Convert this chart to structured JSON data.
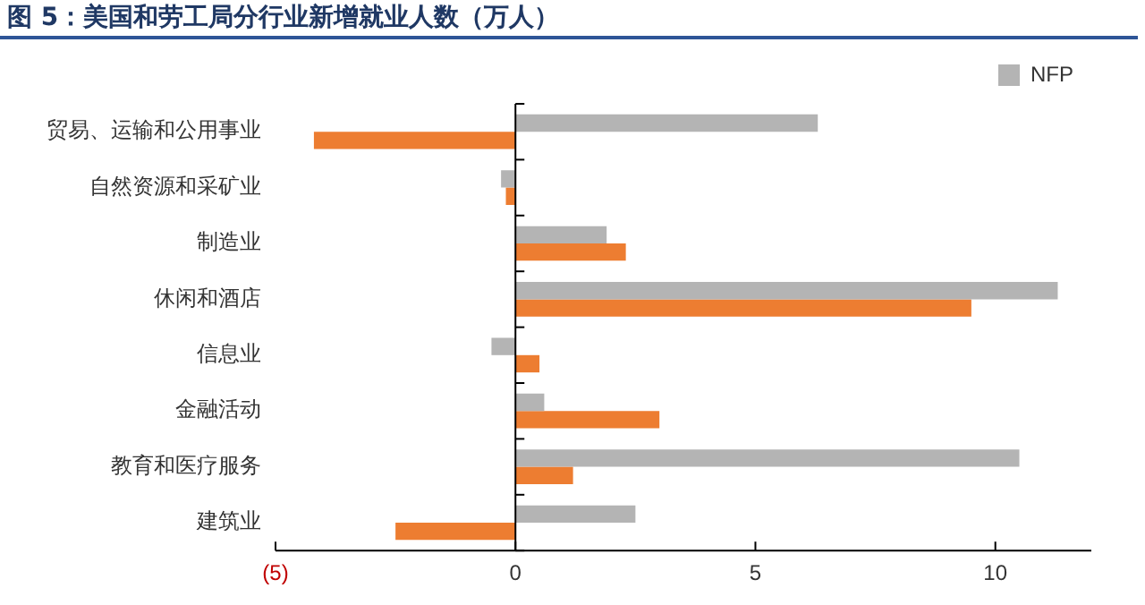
{
  "chart_data": {
    "type": "bar",
    "orientation": "horizontal",
    "title": "图 5：美国和劳工局分行业新增就业人数（万人）",
    "categories": [
      "贸易、运输和公用事业",
      "自然资源和采矿业",
      "制造业",
      "休闲和酒店",
      "信息业",
      "金融活动",
      "教育和医疗服务",
      "建筑业"
    ],
    "series": [
      {
        "name": "NFP",
        "color": "#b4b4b4",
        "values": [
          6.3,
          -0.3,
          1.9,
          11.3,
          -0.5,
          0.6,
          10.5,
          2.5
        ]
      },
      {
        "color": "#ed7d31",
        "values": [
          -4.2,
          -0.2,
          2.3,
          9.5,
          0.5,
          3.0,
          1.2,
          -2.5
        ]
      }
    ],
    "xlim": [
      -5,
      12
    ],
    "xticks": [
      {
        "value": -5,
        "label": "(5)"
      },
      0,
      5,
      10
    ],
    "legend": "top right"
  }
}
